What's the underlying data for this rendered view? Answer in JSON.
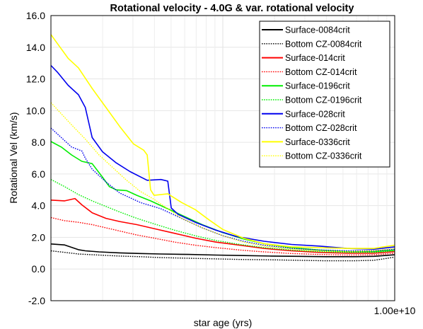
{
  "chart_data": {
    "type": "line",
    "title": "Rotational velocity - 4.0G & var. rotational velocity",
    "xlabel": "star age (yrs)",
    "ylabel": "Rotational Vel (km/s)",
    "ylim": [
      -2.0,
      16.0
    ],
    "xlim": [
      0,
      100
    ],
    "y_ticks": [
      "-2.0",
      "0.0",
      "2.0",
      "4.0",
      "6.0",
      "8.0",
      "10.0",
      "12.0",
      "14.0",
      "16.0"
    ],
    "x_tick_label": "1.00e+10",
    "x_scale": "log",
    "grid": true,
    "legend_position": "top-right",
    "series": [
      {
        "name": "Surface-0084crit",
        "color": "#000000",
        "style": "solid",
        "x": [
          0,
          4,
          8,
          10,
          14,
          20,
          26,
          32,
          40,
          48,
          56,
          64,
          72,
          80,
          88,
          94,
          100
        ],
        "y": [
          1.58,
          1.52,
          1.22,
          1.15,
          1.08,
          1.02,
          0.98,
          0.95,
          0.92,
          0.88,
          0.85,
          0.82,
          0.8,
          0.78,
          0.78,
          0.8,
          0.9
        ]
      },
      {
        "name": "Bottom CZ-0084crit",
        "color": "#000000",
        "style": "dotted",
        "x": [
          0,
          4,
          8,
          14,
          20,
          26,
          32,
          40,
          48,
          56,
          64,
          72,
          80,
          88,
          94,
          100
        ],
        "y": [
          1.15,
          1.05,
          0.95,
          0.88,
          0.82,
          0.78,
          0.72,
          0.68,
          0.64,
          0.6,
          0.58,
          0.55,
          0.52,
          0.52,
          0.55,
          0.75
        ]
      },
      {
        "name": "Surface-014crit",
        "color": "#ff0000",
        "style": "solid",
        "x": [
          0,
          4,
          7,
          9,
          12,
          16,
          20,
          25,
          30,
          36,
          42,
          48,
          55,
          62,
          70,
          78,
          86,
          94,
          100
        ],
        "y": [
          4.35,
          4.3,
          4.45,
          4.05,
          3.55,
          3.2,
          3.0,
          2.8,
          2.55,
          2.25,
          1.95,
          1.7,
          1.5,
          1.3,
          1.15,
          1.05,
          1.0,
          1.0,
          1.1
        ]
      },
      {
        "name": "Bottom CZ-014crit",
        "color": "#ff0000",
        "style": "dotted",
        "x": [
          0,
          4,
          8,
          12,
          16,
          20,
          25,
          30,
          36,
          42,
          48,
          55,
          62,
          70,
          78,
          86,
          94,
          100
        ],
        "y": [
          3.25,
          3.05,
          2.95,
          2.8,
          2.6,
          2.4,
          2.15,
          1.95,
          1.7,
          1.5,
          1.35,
          1.2,
          1.08,
          0.98,
          0.92,
          0.88,
          0.9,
          1.0
        ]
      },
      {
        "name": "Surface-0196crit",
        "color": "#00ee00",
        "style": "solid",
        "x": [
          0,
          3,
          6,
          9,
          12,
          15,
          17,
          19,
          22,
          25,
          29,
          33,
          38,
          44,
          50,
          56,
          62,
          70,
          78,
          86,
          94,
          100
        ],
        "y": [
          8.05,
          7.7,
          7.2,
          6.8,
          6.65,
          5.8,
          5.2,
          5.0,
          4.95,
          4.65,
          4.3,
          3.9,
          3.4,
          2.8,
          2.3,
          1.9,
          1.6,
          1.35,
          1.2,
          1.1,
          1.1,
          1.2
        ]
      },
      {
        "name": "Bottom CZ-0196crit",
        "color": "#00ee00",
        "style": "dotted",
        "x": [
          0,
          4,
          8,
          12,
          16,
          20,
          25,
          30,
          36,
          42,
          48,
          55,
          62,
          70,
          78,
          86,
          94,
          100
        ],
        "y": [
          5.65,
          5.2,
          4.7,
          4.3,
          3.95,
          3.6,
          3.2,
          2.85,
          2.45,
          2.1,
          1.8,
          1.55,
          1.35,
          1.2,
          1.1,
          1.05,
          1.05,
          1.15
        ]
      },
      {
        "name": "Surface-028crit",
        "color": "#0000ee",
        "style": "solid",
        "x": [
          0,
          2,
          5,
          8,
          10,
          12,
          15,
          19,
          23,
          28,
          32,
          34,
          35,
          37,
          42,
          48,
          54,
          62,
          70,
          78,
          86,
          94,
          100
        ],
        "y": [
          12.85,
          12.4,
          11.6,
          11.0,
          10.2,
          8.3,
          7.4,
          6.7,
          6.15,
          5.6,
          5.65,
          5.55,
          3.85,
          3.45,
          2.95,
          2.45,
          2.05,
          1.75,
          1.55,
          1.45,
          1.3,
          1.25,
          1.4
        ]
      },
      {
        "name": "Bottom CZ-028crit",
        "color": "#0000ee",
        "style": "dotted",
        "x": [
          0,
          3,
          6,
          9,
          10,
          12,
          16,
          20,
          26,
          32,
          38,
          44,
          50,
          56,
          62,
          70,
          78,
          86,
          94,
          100
        ],
        "y": [
          8.9,
          8.3,
          7.7,
          7.45,
          7.0,
          6.3,
          5.5,
          4.8,
          4.2,
          3.8,
          3.2,
          2.6,
          2.1,
          1.75,
          1.5,
          1.3,
          1.2,
          1.15,
          1.15,
          1.25
        ]
      },
      {
        "name": "Surface-0336crit",
        "color": "#ffff00",
        "style": "solid",
        "x": [
          0,
          2,
          5,
          8,
          12,
          16,
          20,
          24,
          27,
          28,
          29,
          30,
          34,
          38,
          42,
          46,
          50,
          56,
          62,
          70,
          78,
          86,
          94,
          100
        ],
        "y": [
          14.8,
          14.2,
          13.3,
          12.7,
          11.4,
          10.2,
          9.0,
          7.9,
          7.5,
          7.2,
          5.0,
          4.65,
          4.75,
          4.2,
          3.75,
          3.1,
          2.5,
          1.95,
          1.6,
          1.4,
          1.35,
          1.3,
          1.3,
          1.5
        ]
      },
      {
        "name": "Bottom CZ-0336crit",
        "color": "#ffff00",
        "style": "dotted",
        "x": [
          0,
          3,
          6,
          10,
          14,
          18,
          22,
          26,
          30,
          34,
          38,
          44,
          50,
          56,
          62,
          70,
          78,
          86,
          94,
          100
        ],
        "y": [
          10.5,
          9.8,
          9.1,
          8.2,
          7.2,
          6.4,
          5.6,
          4.9,
          4.4,
          3.8,
          3.2,
          2.6,
          2.1,
          1.7,
          1.45,
          1.25,
          1.15,
          1.1,
          1.15,
          1.3
        ]
      }
    ]
  }
}
